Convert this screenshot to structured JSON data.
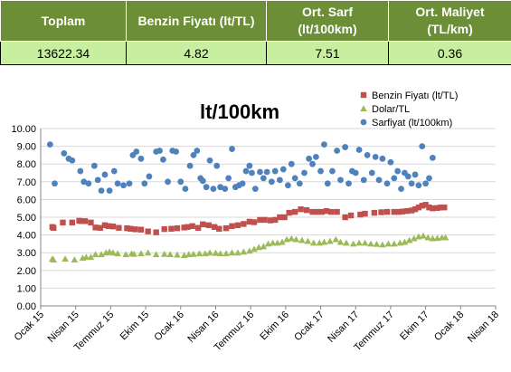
{
  "summary": {
    "headers": [
      "Toplam",
      "Benzin Fiyatı (lt/TL)",
      "Ort. Sarf\n(lt/100km)",
      "Ort. Maliyet\n(TL/km)"
    ],
    "values": [
      "13622.34",
      "4.82",
      "7.51",
      "0.36"
    ]
  },
  "colors": {
    "benzin": "#c0504d",
    "dolar": "#9bbb59",
    "sarfiyat": "#4f81bd",
    "header_bg": "#6b8e37",
    "value_bg": "#c7ef9f"
  },
  "chart_data": {
    "type": "scatter",
    "title": "lt/100km",
    "xlabel": "",
    "ylabel": "",
    "ylim": [
      0,
      10
    ],
    "yticks": [
      "0.00",
      "1.00",
      "2.00",
      "3.00",
      "4.00",
      "5.00",
      "6.00",
      "7.00",
      "8.00",
      "9.00",
      "10.00"
    ],
    "xticks": [
      "Ocak 15",
      "Nisan 15",
      "Temmuz 15",
      "Ekim 15",
      "Ocak 16",
      "Nisan 16",
      "Temmuz 16",
      "Ekim 16",
      "Ocak 17",
      "Nisan 17",
      "Temmuz 17",
      "Ekim 17",
      "Ocak 18",
      "Nisan 18"
    ],
    "x_unit": "month index (0 = Ocak 15)",
    "grid": true,
    "legend_position": "top-right",
    "series": [
      {
        "name": "Benzin Fiyatı (lt/TL)",
        "marker": "square",
        "color": "#c0504d",
        "x": [
          1.0,
          1.1,
          1.9,
          2.7,
          3.3,
          3.5,
          3.8,
          4.3,
          4.7,
          5.1,
          5.5,
          5.8,
          6.2,
          6.7,
          7.4,
          7.7,
          8.1,
          8.6,
          9.2,
          9.9,
          10.6,
          11.2,
          11.7,
          12.3,
          12.6,
          13.0,
          13.5,
          13.9,
          14.4,
          14.9,
          15.3,
          15.9,
          16.4,
          16.9,
          17.4,
          17.9,
          18.3,
          18.8,
          19.2,
          19.7,
          20.1,
          20.5,
          20.9,
          21.3,
          21.8,
          22.3,
          22.8,
          23.3,
          23.7,
          24.1,
          24.5,
          24.9,
          25.4,
          26.1,
          26.6,
          27.4,
          27.8,
          28.6,
          29.2,
          29.7,
          30.3,
          30.7,
          31.0,
          31.4,
          31.8,
          32.1,
          32.4,
          32.7,
          33.0,
          33.3,
          33.6,
          34.0,
          34.3,
          34.6
        ],
        "y": [
          4.45,
          4.4,
          4.7,
          4.7,
          4.8,
          4.78,
          4.78,
          4.7,
          4.42,
          4.4,
          4.55,
          4.5,
          4.48,
          4.4,
          4.38,
          4.35,
          4.32,
          4.3,
          4.2,
          4.15,
          4.33,
          4.35,
          4.38,
          4.42,
          4.45,
          4.5,
          4.4,
          4.6,
          4.55,
          4.45,
          4.35,
          4.38,
          4.5,
          4.55,
          4.62,
          4.75,
          4.72,
          4.85,
          4.85,
          4.82,
          4.85,
          5.0,
          5.0,
          5.25,
          5.3,
          5.45,
          5.4,
          5.3,
          5.3,
          5.3,
          5.35,
          5.3,
          5.3,
          5.0,
          5.1,
          5.15,
          5.2,
          5.25,
          5.28,
          5.3,
          5.3,
          5.3,
          5.32,
          5.35,
          5.38,
          5.45,
          5.55,
          5.65,
          5.7,
          5.55,
          5.5,
          5.52,
          5.55,
          5.55
        ]
      },
      {
        "name": "Dolar/TL",
        "marker": "triangle",
        "color": "#9bbb59",
        "x": [
          1.0,
          1.1,
          2.1,
          2.9,
          3.6,
          3.9,
          4.3,
          4.7,
          5.2,
          5.6,
          5.9,
          6.2,
          6.6,
          7.3,
          7.8,
          8.0,
          8.6,
          9.2,
          9.9,
          10.6,
          11.1,
          11.7,
          12.3,
          12.7,
          13.1,
          13.6,
          14.1,
          14.5,
          15.0,
          15.4,
          15.9,
          16.4,
          16.9,
          17.4,
          17.9,
          18.3,
          18.7,
          19.1,
          19.5,
          19.9,
          20.3,
          20.7,
          21.1,
          21.5,
          21.9,
          22.4,
          22.9,
          23.4,
          23.9,
          24.3,
          24.8,
          25.3,
          25.7,
          26.2,
          26.8,
          27.3,
          27.8,
          28.3,
          28.8,
          29.3,
          29.8,
          30.3,
          30.8,
          31.2,
          31.6,
          32.0,
          32.4,
          32.8,
          33.2,
          33.6,
          34.0,
          34.4,
          34.7
        ],
        "y": [
          2.65,
          2.6,
          2.65,
          2.6,
          2.7,
          2.75,
          2.75,
          2.9,
          2.9,
          3.0,
          3.05,
          3.0,
          2.95,
          2.9,
          2.95,
          2.92,
          2.95,
          3.0,
          2.9,
          2.92,
          2.9,
          2.88,
          2.85,
          2.9,
          2.92,
          2.95,
          2.95,
          3.0,
          2.98,
          2.95,
          2.95,
          3.0,
          3.0,
          3.05,
          3.1,
          3.2,
          3.3,
          3.35,
          3.5,
          3.55,
          3.55,
          3.6,
          3.75,
          3.8,
          3.75,
          3.7,
          3.65,
          3.55,
          3.55,
          3.6,
          3.65,
          3.75,
          3.6,
          3.55,
          3.5,
          3.55,
          3.55,
          3.5,
          3.48,
          3.45,
          3.5,
          3.5,
          3.55,
          3.6,
          3.7,
          3.8,
          3.9,
          3.95,
          3.85,
          3.8,
          3.82,
          3.85,
          3.85
        ]
      },
      {
        "name": "Sarfiyat (lt/100km)",
        "marker": "circle",
        "color": "#4f81bd",
        "x": [
          0.8,
          1.2,
          2.0,
          2.4,
          2.7,
          3.4,
          3.7,
          4.1,
          4.6,
          4.9,
          5.2,
          5.5,
          5.9,
          6.3,
          6.6,
          7.1,
          7.6,
          7.9,
          8.2,
          8.6,
          8.9,
          9.3,
          9.9,
          10.2,
          10.5,
          10.9,
          11.3,
          11.6,
          12.0,
          12.4,
          12.8,
          13.1,
          13.4,
          13.7,
          13.9,
          14.2,
          14.5,
          14.8,
          15.1,
          15.4,
          15.8,
          16.1,
          16.4,
          16.7,
          17.0,
          17.3,
          17.6,
          17.9,
          18.1,
          18.4,
          18.8,
          19.1,
          19.4,
          19.8,
          20.1,
          20.5,
          20.8,
          21.2,
          21.5,
          21.8,
          22.2,
          22.6,
          23.0,
          23.3,
          23.6,
          24.0,
          24.3,
          24.6,
          25.0,
          25.4,
          25.7,
          26.1,
          26.4,
          26.7,
          27.0,
          27.3,
          27.7,
          28.0,
          28.4,
          28.7,
          29.0,
          29.3,
          29.7,
          30.0,
          30.3,
          30.6,
          30.9,
          31.2,
          31.5,
          31.8,
          32.1,
          32.4,
          32.7,
          33.0,
          33.3,
          33.6
        ],
        "y": [
          9.1,
          6.9,
          8.6,
          8.3,
          8.2,
          7.6,
          7.0,
          6.9,
          7.9,
          7.1,
          6.5,
          7.4,
          6.5,
          7.6,
          6.9,
          6.8,
          6.9,
          8.5,
          8.7,
          8.3,
          6.9,
          7.3,
          8.7,
          8.75,
          8.25,
          7.0,
          8.75,
          8.7,
          7.0,
          6.6,
          7.9,
          8.5,
          8.75,
          7.2,
          7.05,
          6.7,
          8.2,
          6.6,
          7.9,
          6.7,
          6.6,
          7.2,
          8.85,
          6.7,
          6.8,
          6.9,
          7.6,
          7.9,
          7.5,
          6.6,
          7.55,
          7.2,
          7.55,
          7.0,
          7.6,
          7.1,
          7.7,
          6.8,
          8.0,
          7.2,
          6.9,
          7.5,
          8.3,
          8.0,
          8.4,
          7.6,
          9.1,
          6.9,
          7.6,
          8.75,
          7.1,
          8.95,
          6.9,
          7.6,
          7.5,
          8.8,
          7.1,
          8.5,
          7.5,
          8.4,
          7.1,
          8.3,
          6.9,
          8.1,
          7.2,
          7.6,
          6.6,
          7.5,
          7.3,
          6.9,
          7.4,
          6.8,
          9.0,
          6.9,
          7.2,
          8.35
        ]
      }
    ]
  }
}
